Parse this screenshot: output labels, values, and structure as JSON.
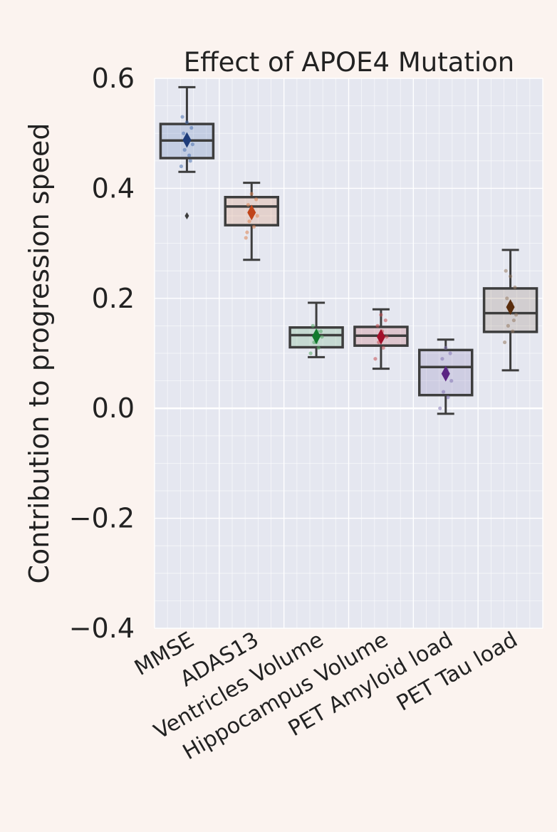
{
  "chart_data": {
    "type": "box",
    "title": "Effect of APOE4 Mutation",
    "xlabel": "",
    "ylabel": "Contribution to progression speed",
    "ylim": [
      -0.4,
      0.6
    ],
    "yticks": [
      -0.4,
      -0.2,
      0.0,
      0.2,
      0.4,
      0.6
    ],
    "ytick_labels": [
      "−0.4",
      "−0.2",
      "0.0",
      "0.2",
      "0.4",
      "0.6"
    ],
    "grid": true,
    "categories": [
      "MMSE",
      "ADAS13",
      "Ventricles Volume",
      "Hippocampus Volume",
      "PET Amyloid load",
      "PET Tau load"
    ],
    "boxes": [
      {
        "whislo": 0.43,
        "q1": 0.455,
        "med": 0.487,
        "q3": 0.517,
        "whishi": 0.584,
        "mean": 0.488,
        "fliers": [
          0.35
        ],
        "color": "#4c72b0",
        "mean_color": "#1f3d7a",
        "points": [
          0.44,
          0.46,
          0.47,
          0.48,
          0.49,
          0.5,
          0.51,
          0.52,
          0.53,
          0.45
        ]
      },
      {
        "whislo": 0.27,
        "q1": 0.333,
        "med": 0.367,
        "q3": 0.384,
        "whishi": 0.41,
        "mean": 0.356,
        "fliers": [],
        "color": "#dd8452",
        "mean_color": "#c0441a",
        "points": [
          0.31,
          0.33,
          0.34,
          0.35,
          0.36,
          0.37,
          0.38,
          0.39,
          0.32
        ]
      },
      {
        "whislo": 0.093,
        "q1": 0.111,
        "med": 0.133,
        "q3": 0.147,
        "whishi": 0.192,
        "mean": 0.131,
        "fliers": [],
        "color": "#55a868",
        "mean_color": "#127a2e",
        "points": [
          0.1,
          0.11,
          0.12,
          0.13,
          0.14,
          0.15,
          0.14,
          0.12
        ]
      },
      {
        "whislo": 0.072,
        "q1": 0.114,
        "med": 0.132,
        "q3": 0.148,
        "whishi": 0.18,
        "mean": 0.13,
        "fliers": [],
        "color": "#c44e52",
        "mean_color": "#a3102a",
        "points": [
          0.09,
          0.11,
          0.12,
          0.13,
          0.14,
          0.15,
          0.16,
          0.17
        ]
      },
      {
        "whislo": -0.01,
        "q1": 0.024,
        "med": 0.075,
        "q3": 0.106,
        "whishi": 0.125,
        "mean": 0.063,
        "fliers": [],
        "color": "#8172b3",
        "mean_color": "#5a2583",
        "points": [
          0.0,
          0.02,
          0.03,
          0.05,
          0.07,
          0.09,
          0.1,
          0.11
        ]
      },
      {
        "whislo": 0.069,
        "q1": 0.139,
        "med": 0.173,
        "q3": 0.218,
        "whishi": 0.288,
        "mean": 0.184,
        "fliers": [],
        "color": "#937860",
        "mean_color": "#5a2d0c",
        "points": [
          0.12,
          0.14,
          0.15,
          0.17,
          0.19,
          0.2,
          0.22,
          0.24,
          0.25,
          0.16
        ]
      }
    ]
  }
}
